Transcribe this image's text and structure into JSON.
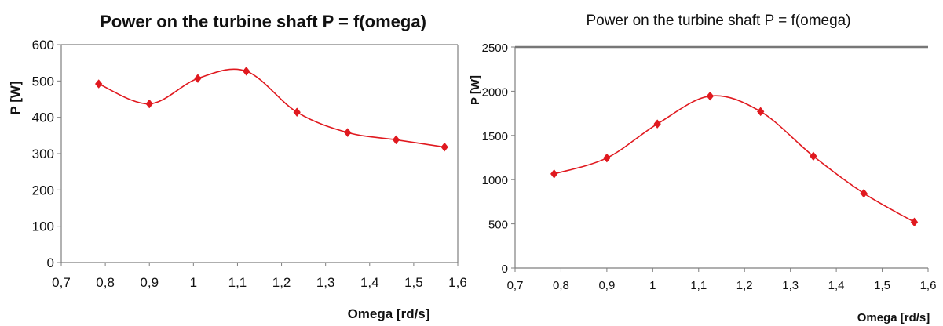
{
  "colors": {
    "series": "#e0191f",
    "axis": "#7f7f7f",
    "frame_top": "#777777"
  },
  "chart_data": [
    {
      "type": "line",
      "title": "Power on the turbine shaft  P = f(omega)",
      "xlabel": "Omega  [rd/s]",
      "ylabel": "P  [W]",
      "xlim": [
        0.7,
        1.6
      ],
      "ylim": [
        0,
        600
      ],
      "xticks": [
        "0,7",
        "0,8",
        "0,9",
        "1",
        "1,1",
        "1,2",
        "1,3",
        "1,4",
        "1,5",
        "1,6"
      ],
      "yticks": [
        "0",
        "100",
        "200",
        "300",
        "400",
        "500",
        "600"
      ],
      "grid": false,
      "x": [
        0.785,
        0.9,
        1.01,
        1.12,
        1.235,
        1.35,
        1.46,
        1.57
      ],
      "series": [
        {
          "values": [
            492,
            437,
            507,
            527,
            414,
            358,
            338,
            318
          ]
        }
      ]
    },
    {
      "type": "line",
      "title": "Power on the turbine shaft  P = f(omega)",
      "xlabel": "Omega [rd/s]",
      "ylabel": "P  [W]",
      "xlim": [
        0.7,
        1.6
      ],
      "ylim": [
        0,
        2500
      ],
      "xticks": [
        "0,7",
        "0,8",
        "0,9",
        "1",
        "1,1",
        "1,2",
        "1,3",
        "1,4",
        "1,5",
        "1,6"
      ],
      "yticks": [
        "0",
        "500",
        "1000",
        "1500",
        "2000",
        "2500"
      ],
      "grid": false,
      "x": [
        0.785,
        0.9,
        1.01,
        1.125,
        1.235,
        1.35,
        1.46,
        1.57
      ],
      "series": [
        {
          "values": [
            1065,
            1245,
            1630,
            1945,
            1770,
            1265,
            845,
            520
          ]
        }
      ]
    }
  ]
}
